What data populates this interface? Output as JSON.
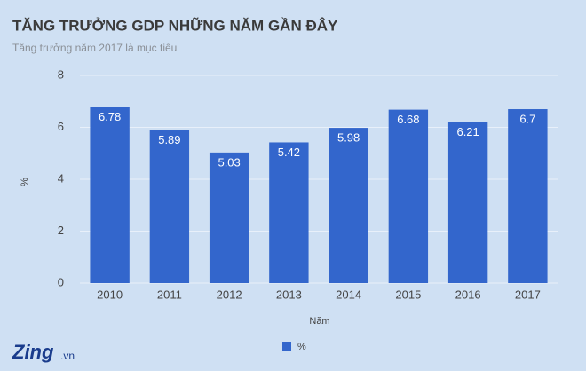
{
  "chart_data": {
    "type": "bar",
    "title": "TĂNG TRƯỞNG GDP NHỮNG NĂM GẦN ĐÂY",
    "subtitle": "Tăng trưởng năm 2017 là mục tiêu",
    "x_label": "Năm",
    "y_label": "%",
    "categories": [
      "2010",
      "2011",
      "2012",
      "2013",
      "2014",
      "2015",
      "2016",
      "2017"
    ],
    "series": [
      {
        "name": "%",
        "color": "#3366cc",
        "values": [
          6.78,
          5.89,
          5.03,
          5.42,
          5.98,
          6.68,
          6.21,
          6.7
        ]
      }
    ],
    "ylim": [
      0,
      8
    ],
    "yticks": [
      0,
      2,
      4,
      6,
      8
    ],
    "grid": true,
    "legend": "bottom",
    "watermark": {
      "brand": "Zing",
      "domain": ".vn"
    }
  }
}
